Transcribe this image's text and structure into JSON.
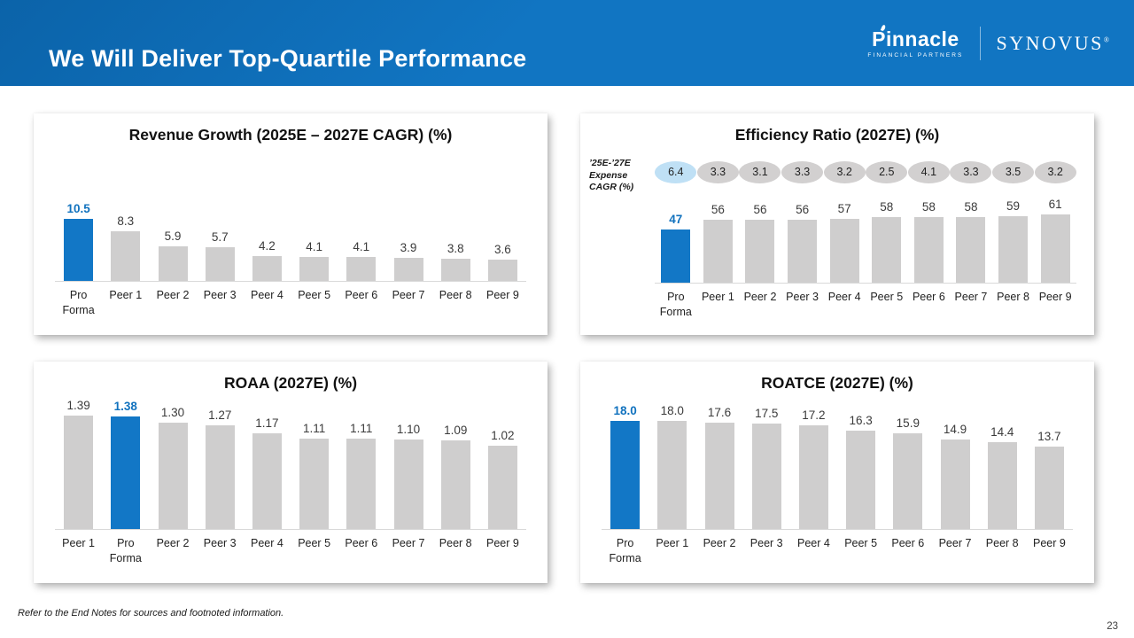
{
  "header": {
    "title": "We Will Deliver Top-Quartile Performance",
    "pinnacle": {
      "name": "Pinnacle",
      "subtitle": "FINANCIAL PARTNERS"
    },
    "synovus": {
      "name": "SYNOVUS",
      "mark": "®"
    }
  },
  "footer": {
    "note": "Refer to the End Notes for sources and footnoted information.",
    "page_number": "23"
  },
  "colors": {
    "header_blue": "#1173BF",
    "highlight_blue": "#1277C6",
    "highlight_text_blue": "#1172BE",
    "peer_gray": "#CFCECE",
    "pill_gray": "#D2D0D0",
    "pill_highlight_blue": "#BFE0F5"
  },
  "chart_data": [
    {
      "type": "bar",
      "title": "Revenue Growth (2025E – 2027E CAGR) (%)",
      "categories": [
        "Pro Forma",
        "Peer 1",
        "Peer 2",
        "Peer 3",
        "Peer 4",
        "Peer 5",
        "Peer 6",
        "Peer 7",
        "Peer 8",
        "Peer 9"
      ],
      "values": [
        "10.5",
        "8.3",
        "5.9",
        "5.7",
        "4.2",
        "4.1",
        "4.1",
        "3.9",
        "3.8",
        "3.6"
      ],
      "highlight_index": 0,
      "highlight_category": "Pro Forma",
      "ylim": [
        0,
        12
      ],
      "grid": false,
      "legend": "none"
    },
    {
      "type": "bar",
      "title": "Efficiency Ratio (2027E) (%)",
      "categories": [
        "Pro Forma",
        "Peer 1",
        "Peer 2",
        "Peer 3",
        "Peer 4",
        "Peer 5",
        "Peer 6",
        "Peer 7",
        "Peer 8",
        "Peer 9"
      ],
      "values": [
        "47",
        "56",
        "56",
        "56",
        "57",
        "58",
        "58",
        "58",
        "59",
        "61"
      ],
      "highlight_index": 0,
      "highlight_category": "Pro Forma",
      "pill_label": "’25E-’27E Expense CAGR (%)",
      "pills": [
        "6.4",
        "3.3",
        "3.1",
        "3.3",
        "3.2",
        "2.5",
        "4.1",
        "3.3",
        "3.5",
        "3.2"
      ],
      "ylim": [
        0,
        90
      ],
      "grid": false,
      "legend": "none"
    },
    {
      "type": "bar",
      "title": "ROAA (2027E) (%)",
      "categories": [
        "Peer 1",
        "Pro Forma",
        "Peer 2",
        "Peer 3",
        "Peer 4",
        "Peer 5",
        "Peer 6",
        "Peer 7",
        "Peer 8",
        "Peer 9"
      ],
      "values": [
        "1.39",
        "1.38",
        "1.30",
        "1.27",
        "1.17",
        "1.11",
        "1.11",
        "1.10",
        "1.09",
        "1.02"
      ],
      "highlight_index": 1,
      "highlight_category": "Pro Forma",
      "ylim": [
        0,
        1.6
      ],
      "grid": false,
      "legend": "none"
    },
    {
      "type": "bar",
      "title": "ROATCE (2027E) (%)",
      "categories": [
        "Pro Forma",
        "Peer 1",
        "Peer 2",
        "Peer 3",
        "Peer 4",
        "Peer 5",
        "Peer 6",
        "Peer 7",
        "Peer 8",
        "Peer 9"
      ],
      "values": [
        "18.0",
        "18.0",
        "17.6",
        "17.5",
        "17.2",
        "16.3",
        "15.9",
        "14.9",
        "14.4",
        "13.7"
      ],
      "highlight_index": 0,
      "highlight_category": "Pro Forma",
      "ylim": [
        0,
        21
      ],
      "grid": false,
      "legend": "none"
    }
  ]
}
